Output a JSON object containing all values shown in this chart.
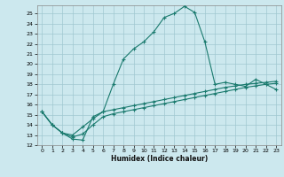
{
  "xlabel": "Humidex (Indice chaleur)",
  "bg_color": "#cce8ee",
  "grid_color": "#a0c8d0",
  "line_color": "#1a7a6e",
  "xlim": [
    -0.5,
    23.5
  ],
  "ylim": [
    12,
    25.8
  ],
  "xticks": [
    0,
    1,
    2,
    3,
    4,
    5,
    6,
    7,
    8,
    9,
    10,
    11,
    12,
    13,
    14,
    15,
    16,
    17,
    18,
    19,
    20,
    21,
    22,
    23
  ],
  "yticks": [
    12,
    13,
    14,
    15,
    16,
    17,
    18,
    19,
    20,
    21,
    22,
    23,
    24,
    25
  ],
  "line1_x": [
    0,
    1,
    2,
    3,
    4,
    5,
    6,
    7,
    8,
    9,
    10,
    11,
    12,
    13,
    14,
    15,
    16,
    17,
    18,
    19,
    20,
    21,
    22,
    23
  ],
  "line1_y": [
    15.3,
    14.0,
    13.2,
    12.6,
    12.5,
    14.8,
    15.3,
    18.0,
    20.5,
    21.5,
    22.2,
    23.2,
    24.6,
    25.0,
    25.7,
    25.1,
    22.2,
    18.0,
    18.2,
    18.0,
    17.8,
    18.5,
    18.0,
    17.5
  ],
  "line2_x": [
    0,
    1,
    2,
    3,
    4,
    5,
    6,
    7,
    8,
    9,
    10,
    11,
    12,
    13,
    14,
    15,
    16,
    17,
    18,
    19,
    20,
    21,
    22,
    23
  ],
  "line2_y": [
    15.3,
    14.0,
    13.2,
    13.0,
    13.8,
    14.6,
    15.3,
    15.5,
    15.7,
    15.9,
    16.1,
    16.3,
    16.5,
    16.7,
    16.9,
    17.1,
    17.3,
    17.5,
    17.7,
    17.85,
    18.0,
    18.1,
    18.2,
    18.3
  ],
  "line3_x": [
    0,
    1,
    2,
    3,
    4,
    5,
    6,
    7,
    8,
    9,
    10,
    11,
    12,
    13,
    14,
    15,
    16,
    17,
    18,
    19,
    20,
    21,
    22,
    23
  ],
  "line3_y": [
    15.3,
    14.0,
    13.2,
    12.8,
    13.1,
    14.0,
    14.8,
    15.1,
    15.3,
    15.5,
    15.7,
    15.9,
    16.1,
    16.3,
    16.5,
    16.7,
    16.9,
    17.1,
    17.3,
    17.5,
    17.7,
    17.85,
    18.0,
    18.1
  ]
}
